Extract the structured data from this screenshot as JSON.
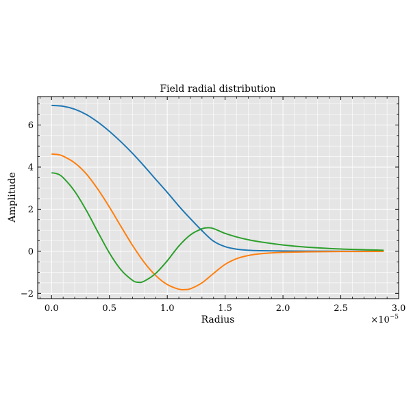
{
  "chart_data": {
    "type": "line",
    "title": "Field radial distribution",
    "xlabel": "Radius",
    "ylabel": "Amplitude",
    "x_offset_text": {
      "base": "×10",
      "exponent": "−5"
    },
    "xlim": [
      -0.12,
      3.0
    ],
    "ylim": [
      -2.25,
      7.35
    ],
    "xticks": [
      0.0,
      0.5,
      1.0,
      1.5,
      2.0,
      2.5,
      3.0
    ],
    "xtick_labels": [
      "0.0",
      "0.5",
      "1.0",
      "1.5",
      "2.0",
      "2.5",
      "3.0"
    ],
    "yticks": [
      -2,
      0,
      2,
      4,
      6
    ],
    "ytick_labels": [
      "−2",
      "0",
      "2",
      "4",
      "6"
    ],
    "grid": true,
    "background": "#e5e5e5",
    "x_units_scale": 1e-05,
    "series": [
      {
        "color": "#1f77b4",
        "points": [
          [
            0.0,
            6.93
          ],
          [
            0.1,
            6.89
          ],
          [
            0.2,
            6.75
          ],
          [
            0.3,
            6.5
          ],
          [
            0.4,
            6.14
          ],
          [
            0.5,
            5.7
          ],
          [
            0.6,
            5.2
          ],
          [
            0.7,
            4.65
          ],
          [
            0.8,
            4.05
          ],
          [
            0.9,
            3.42
          ],
          [
            1.0,
            2.8
          ],
          [
            1.1,
            2.15
          ],
          [
            1.2,
            1.55
          ],
          [
            1.3,
            0.98
          ],
          [
            1.4,
            0.48
          ],
          [
            1.5,
            0.22
          ],
          [
            1.6,
            0.1
          ],
          [
            1.7,
            0.05
          ],
          [
            1.8,
            0.03
          ],
          [
            2.0,
            0.015
          ],
          [
            2.2,
            0.008
          ],
          [
            2.5,
            0.004
          ],
          [
            2.87,
            0.002
          ]
        ]
      },
      {
        "color": "#ff7f0e",
        "points": [
          [
            0.0,
            4.62
          ],
          [
            0.05,
            4.6
          ],
          [
            0.1,
            4.52
          ],
          [
            0.2,
            4.2
          ],
          [
            0.3,
            3.68
          ],
          [
            0.4,
            2.95
          ],
          [
            0.5,
            2.1
          ],
          [
            0.6,
            1.18
          ],
          [
            0.7,
            0.28
          ],
          [
            0.8,
            -0.52
          ],
          [
            0.9,
            -1.15
          ],
          [
            1.0,
            -1.58
          ],
          [
            1.1,
            -1.8
          ],
          [
            1.15,
            -1.82
          ],
          [
            1.2,
            -1.78
          ],
          [
            1.3,
            -1.5
          ],
          [
            1.4,
            -1.05
          ],
          [
            1.5,
            -0.62
          ],
          [
            1.6,
            -0.35
          ],
          [
            1.7,
            -0.2
          ],
          [
            1.8,
            -0.12
          ],
          [
            2.0,
            -0.05
          ],
          [
            2.2,
            -0.025
          ],
          [
            2.5,
            -0.01
          ],
          [
            2.87,
            -0.005
          ]
        ]
      },
      {
        "color": "#2ca02c",
        "points": [
          [
            0.0,
            3.73
          ],
          [
            0.05,
            3.68
          ],
          [
            0.1,
            3.5
          ],
          [
            0.2,
            2.85
          ],
          [
            0.3,
            1.95
          ],
          [
            0.4,
            0.92
          ],
          [
            0.5,
            -0.08
          ],
          [
            0.6,
            -0.88
          ],
          [
            0.7,
            -1.38
          ],
          [
            0.75,
            -1.47
          ],
          [
            0.8,
            -1.42
          ],
          [
            0.9,
            -1.05
          ],
          [
            1.0,
            -0.45
          ],
          [
            1.1,
            0.25
          ],
          [
            1.2,
            0.78
          ],
          [
            1.3,
            1.07
          ],
          [
            1.35,
            1.12
          ],
          [
            1.4,
            1.08
          ],
          [
            1.5,
            0.85
          ],
          [
            1.6,
            0.68
          ],
          [
            1.7,
            0.55
          ],
          [
            1.8,
            0.45
          ],
          [
            2.0,
            0.3
          ],
          [
            2.2,
            0.2
          ],
          [
            2.5,
            0.11
          ],
          [
            2.87,
            0.05
          ]
        ]
      }
    ]
  },
  "colors": {
    "plot_background": "#e5e5e5",
    "grid": "#ffffff",
    "frame": "#000000"
  }
}
